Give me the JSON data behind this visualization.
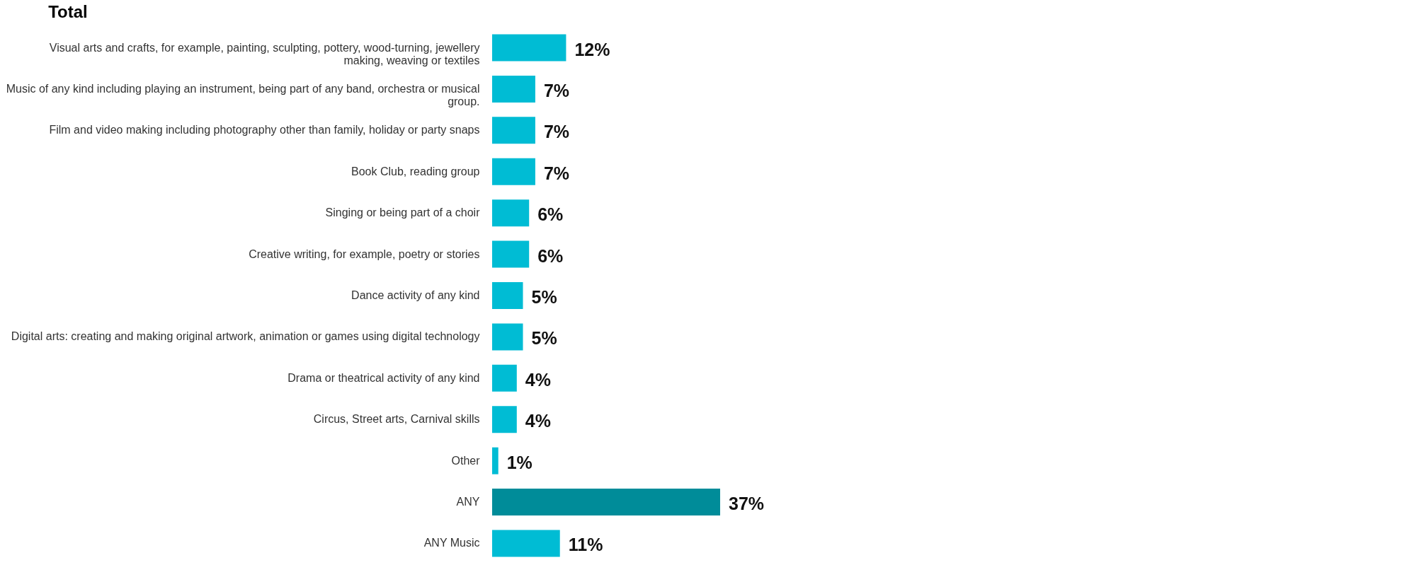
{
  "chart_data": {
    "type": "bar",
    "orientation": "horizontal",
    "title": "Total",
    "categories": [
      "Visual arts and crafts, for example, painting, sculpting, pottery, wood-turning, jewellery making, weaving or textiles",
      "Music of any kind including playing an instrument, being part of any band, orchestra or musical group.",
      "Film and video making including photography other than family, holiday or party snaps",
      "Book Club, reading group",
      "Singing or being part of a choir",
      "Creative writing, for example, poetry or stories",
      "Dance activity of any kind",
      "Digital arts: creating and making original artwork, animation or games using digital technology",
      "Drama or theatrical activity of any kind",
      "Circus, Street arts, Carnival skills",
      "Other",
      "ANY",
      "ANY Music"
    ],
    "values": [
      12,
      7,
      7,
      7,
      6,
      6,
      5,
      5,
      4,
      4,
      1,
      37,
      11
    ],
    "value_labels": [
      "12%",
      "7%",
      "7%",
      "7%",
      "6%",
      "6%",
      "5%",
      "5%",
      "4%",
      "4%",
      "1%",
      "37%",
      "11%"
    ],
    "colors": [
      "#00bcd4",
      "#00bcd4",
      "#00bcd4",
      "#00bcd4",
      "#00bcd4",
      "#00bcd4",
      "#00bcd4",
      "#00bcd4",
      "#00bcd4",
      "#00bcd4",
      "#00bcd4",
      "#008c99",
      "#00bcd4"
    ]
  }
}
